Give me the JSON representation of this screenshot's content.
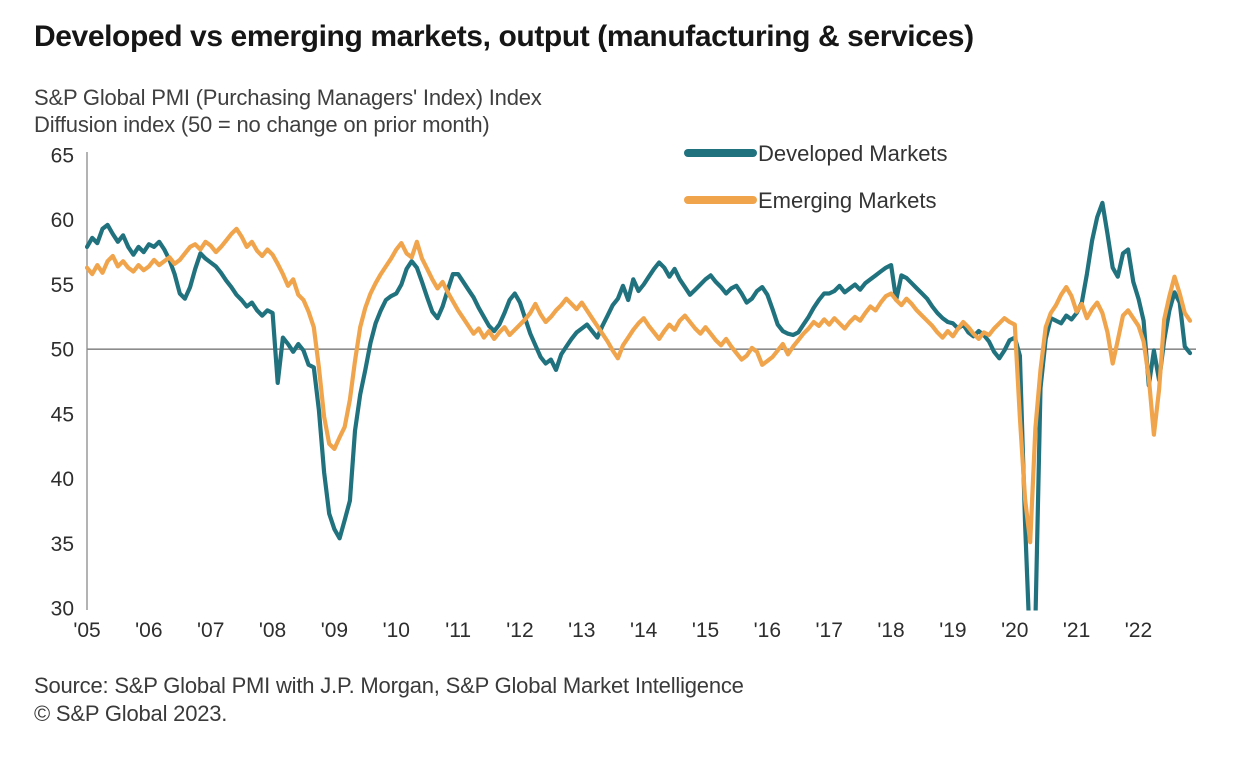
{
  "page": {
    "background": "#ffffff"
  },
  "header": {
    "title": "Developed vs emerging markets, output (manufacturing & services)",
    "subtitle_line1": "S&P Global PMI (Purchasing Managers' Index) Index",
    "subtitle_line2": "Diffusion index (50 = no change on prior month)"
  },
  "footer": {
    "source_line1": "Source: S&P Global PMI with J.P. Morgan, S&P Global Market Intelligence",
    "source_line2": "© S&P Global 2023."
  },
  "chart_data": {
    "type": "line",
    "title": "Developed vs emerging markets, output (manufacturing & services)",
    "subtitle": "S&P Global PMI (Purchasing Managers' Index) Index — Diffusion index (50 = no change on prior month)",
    "grid": false,
    "legend_position": "top-right",
    "x_axis": {
      "interval": "monthly",
      "start": "2005-01",
      "end": "2022-11",
      "tick_labels": [
        "'05",
        "'06",
        "'07",
        "'08",
        "'09",
        "'10",
        "'11",
        "'12",
        "'13",
        "'14",
        "'15",
        "'16",
        "'17",
        "'18",
        "'19",
        "'20",
        "'21",
        "'22"
      ]
    },
    "y_axis": {
      "ticks": [
        65,
        60,
        55,
        50,
        45,
        40,
        35,
        30
      ],
      "range": [
        30,
        65
      ]
    },
    "reference_line": {
      "value": 50
    },
    "colors": {
      "developed": "#21727f",
      "emerging": "#f0a44c",
      "axis": "#a0a0a0",
      "reference": "#8c8c8c"
    },
    "series": [
      {
        "name": "Developed Markets",
        "color": "#21727f",
        "values": [
          57.9,
          58.6,
          58.2,
          59.3,
          59.6,
          58.9,
          58.3,
          58.8,
          57.9,
          57.3,
          57.9,
          57.5,
          58.1,
          57.9,
          58.3,
          57.7,
          56.9,
          55.8,
          54.3,
          53.9,
          54.8,
          56.2,
          57.4,
          57.0,
          56.7,
          56.4,
          55.9,
          55.3,
          54.8,
          54.2,
          53.8,
          53.3,
          53.6,
          53.0,
          52.6,
          53.0,
          52.8,
          47.4,
          50.9,
          50.4,
          49.8,
          50.4,
          49.9,
          48.8,
          48.6,
          45.3,
          40.5,
          37.3,
          36.1,
          35.4,
          36.8,
          38.3,
          43.7,
          46.5,
          48.4,
          50.5,
          52.0,
          53.0,
          53.8,
          54.1,
          54.3,
          55.0,
          56.2,
          56.8,
          56.3,
          55.2,
          54.0,
          52.9,
          52.4,
          53.3,
          54.6,
          55.8,
          55.8,
          55.2,
          54.6,
          54.0,
          53.2,
          52.5,
          51.8,
          51.4,
          51.9,
          52.8,
          53.8,
          54.3,
          53.6,
          52.4,
          51.2,
          50.3,
          49.4,
          48.9,
          49.2,
          48.4,
          49.6,
          50.2,
          50.8,
          51.3,
          51.6,
          51.9,
          51.4,
          50.9,
          51.8,
          52.6,
          53.4,
          53.9,
          54.9,
          53.8,
          55.4,
          54.5,
          55.0,
          55.6,
          56.2,
          56.7,
          56.3,
          55.6,
          56.2,
          55.4,
          54.8,
          54.2,
          54.6,
          55.0,
          55.4,
          55.7,
          55.2,
          54.8,
          54.3,
          54.7,
          54.9,
          54.3,
          53.6,
          53.9,
          54.5,
          54.8,
          54.2,
          53.1,
          51.9,
          51.4,
          51.2,
          51.1,
          51.3,
          51.9,
          52.5,
          53.2,
          53.8,
          54.3,
          54.3,
          54.5,
          54.9,
          54.4,
          54.7,
          55.0,
          54.6,
          55.1,
          55.4,
          55.7,
          56.0,
          56.3,
          56.5,
          53.8,
          55.7,
          55.5,
          55.1,
          54.7,
          54.3,
          53.9,
          53.3,
          52.8,
          52.4,
          52.1,
          52.0,
          51.6,
          51.9,
          51.3,
          51.0,
          51.4,
          51.1,
          50.6,
          49.8,
          49.3,
          49.9,
          50.7,
          50.9,
          49.5,
          36.5,
          26.5,
          29.0,
          47.0,
          50.8,
          52.4,
          52.2,
          52.0,
          52.6,
          52.3,
          52.8,
          53.6,
          55.8,
          58.4,
          60.2,
          61.3,
          58.9,
          56.3,
          55.6,
          57.4,
          57.7,
          55.2,
          53.9,
          52.2,
          47.2,
          49.9,
          47.6,
          50.7,
          53.0,
          54.4,
          53.6,
          50.2,
          49.7
        ]
      },
      {
        "name": "Emerging Markets",
        "color": "#f0a44c",
        "values": [
          56.3,
          55.8,
          56.5,
          55.9,
          56.8,
          57.2,
          56.4,
          56.8,
          56.3,
          56.0,
          56.5,
          56.1,
          56.4,
          56.9,
          56.5,
          56.8,
          57.1,
          56.6,
          56.9,
          57.4,
          57.9,
          58.1,
          57.7,
          58.3,
          58.0,
          57.5,
          57.9,
          58.4,
          58.9,
          59.3,
          58.7,
          57.9,
          58.3,
          57.6,
          57.2,
          57.7,
          57.3,
          56.6,
          55.8,
          54.9,
          55.4,
          54.2,
          53.8,
          52.9,
          51.7,
          48.6,
          44.8,
          42.7,
          42.3,
          43.2,
          44.0,
          46.1,
          49.1,
          51.7,
          53.2,
          54.3,
          55.1,
          55.8,
          56.4,
          57.0,
          57.7,
          58.2,
          57.4,
          57.1,
          58.3,
          57.0,
          56.2,
          55.4,
          54.7,
          55.2,
          54.4,
          53.7,
          53.0,
          52.4,
          51.8,
          51.2,
          51.6,
          50.9,
          51.4,
          50.8,
          51.3,
          51.7,
          51.1,
          51.5,
          51.9,
          52.3,
          52.8,
          53.5,
          52.7,
          52.1,
          52.5,
          53.0,
          53.4,
          53.9,
          53.5,
          53.1,
          53.6,
          53.0,
          52.4,
          51.8,
          51.2,
          50.6,
          49.9,
          49.3,
          50.3,
          50.9,
          51.5,
          52.0,
          52.4,
          51.8,
          51.3,
          50.8,
          51.4,
          51.9,
          51.5,
          52.2,
          52.6,
          52.1,
          51.6,
          51.2,
          51.7,
          51.2,
          50.7,
          50.3,
          50.8,
          50.2,
          49.7,
          49.2,
          49.5,
          50.1,
          49.8,
          48.8,
          49.1,
          49.4,
          49.9,
          50.4,
          49.6,
          50.2,
          50.7,
          51.2,
          51.6,
          52.1,
          51.8,
          52.3,
          51.9,
          52.4,
          52.0,
          51.6,
          52.1,
          52.5,
          52.2,
          52.8,
          53.3,
          53.0,
          53.6,
          54.1,
          54.3,
          53.8,
          53.4,
          53.9,
          53.5,
          53.0,
          52.6,
          52.2,
          51.8,
          51.3,
          50.9,
          51.4,
          51.0,
          51.6,
          52.1,
          51.7,
          51.2,
          50.8,
          51.3,
          51.1,
          51.6,
          52.0,
          52.4,
          52.1,
          51.9,
          44.7,
          38.4,
          35.1,
          43.9,
          48.4,
          51.7,
          52.8,
          53.4,
          54.2,
          54.8,
          54.1,
          52.9,
          53.5,
          52.4,
          53.1,
          53.6,
          52.8,
          51.3,
          48.9,
          50.7,
          52.6,
          53.0,
          52.4,
          51.8,
          50.6,
          47.8,
          43.4,
          46.9,
          52.3,
          54.1,
          55.6,
          54.3,
          52.8,
          52.2
        ]
      }
    ]
  }
}
